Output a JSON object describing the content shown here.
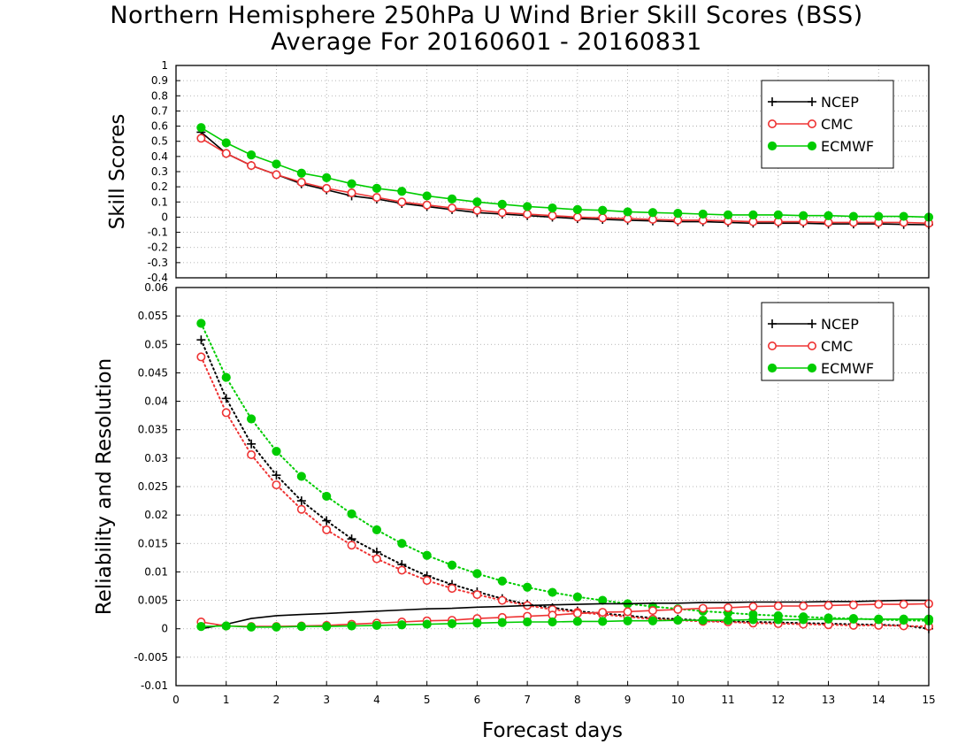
{
  "title_line1": "Northern Hemisphere 250hPa U Wind Brier Skill Scores (BSS)",
  "title_line2": "Average For 20160601 - 20160831",
  "colors": {
    "NCEP": "#000000",
    "CMC": "#ee3333",
    "ECMWF": "#00cc00"
  },
  "chart_data": [
    {
      "type": "line",
      "ylabel": "Skill Scores",
      "xlim": [
        0,
        15
      ],
      "ylim": [
        -0.4,
        1
      ],
      "yticks": [
        "-0.4",
        "-0.3",
        "-0.2",
        "-0.1",
        "0",
        "0.1",
        "0.2",
        "0.3",
        "0.4",
        "0.5",
        "0.6",
        "0.7",
        "0.8",
        "0.9",
        "1"
      ],
      "xticks": [
        "0",
        "1",
        "2",
        "3",
        "4",
        "5",
        "6",
        "7",
        "8",
        "9",
        "10",
        "11",
        "12",
        "13",
        "14",
        "15"
      ],
      "grid": true,
      "legend_position": "top-right",
      "x": [
        0.5,
        1,
        1.5,
        2,
        2.5,
        3,
        3.5,
        4,
        4.5,
        5,
        5.5,
        6,
        6.5,
        7,
        7.5,
        8,
        8.5,
        9,
        9.5,
        10,
        10.5,
        11,
        11.5,
        12,
        12.5,
        13,
        13.5,
        14,
        14.5,
        15
      ],
      "series": [
        {
          "name": "NCEP",
          "style": "solid",
          "marker": "plus",
          "values": [
            0.56,
            0.42,
            0.34,
            0.28,
            0.22,
            0.18,
            0.14,
            0.12,
            0.09,
            0.07,
            0.05,
            0.03,
            0.02,
            0.01,
            0.0,
            -0.01,
            -0.015,
            -0.02,
            -0.025,
            -0.03,
            -0.03,
            -0.035,
            -0.04,
            -0.04,
            -0.04,
            -0.045,
            -0.045,
            -0.045,
            -0.048,
            -0.05
          ]
        },
        {
          "name": "CMC",
          "style": "solid",
          "marker": "open-circle",
          "values": [
            0.52,
            0.42,
            0.34,
            0.28,
            0.23,
            0.19,
            0.16,
            0.13,
            0.1,
            0.08,
            0.06,
            0.045,
            0.03,
            0.02,
            0.01,
            0.0,
            -0.005,
            -0.01,
            -0.015,
            -0.02,
            -0.02,
            -0.025,
            -0.03,
            -0.03,
            -0.03,
            -0.035,
            -0.035,
            -0.035,
            -0.035,
            -0.04
          ]
        },
        {
          "name": "ECMWF",
          "style": "solid",
          "marker": "filled-circle",
          "values": [
            0.59,
            0.49,
            0.41,
            0.35,
            0.29,
            0.26,
            0.22,
            0.19,
            0.17,
            0.14,
            0.12,
            0.1,
            0.085,
            0.07,
            0.06,
            0.05,
            0.045,
            0.035,
            0.03,
            0.025,
            0.02,
            0.015,
            0.015,
            0.015,
            0.01,
            0.01,
            0.005,
            0.005,
            0.005,
            0.0
          ]
        }
      ]
    },
    {
      "type": "line",
      "ylabel": "Reliability and Resolution",
      "xlabel": "Forecast days",
      "xlim": [
        0,
        15
      ],
      "ylim": [
        -0.01,
        0.06
      ],
      "yticks": [
        "-0.01",
        "-0.005",
        "0",
        "0.005",
        "0.01",
        "0.015",
        "0.02",
        "0.025",
        "0.03",
        "0.035",
        "0.04",
        "0.045",
        "0.05",
        "0.055",
        "0.06"
      ],
      "xticks": [
        "0",
        "1",
        "2",
        "3",
        "4",
        "5",
        "6",
        "7",
        "8",
        "9",
        "10",
        "11",
        "12",
        "13",
        "14",
        "15"
      ],
      "grid": true,
      "legend_position": "top-right",
      "x": [
        0.5,
        1,
        1.5,
        2,
        2.5,
        3,
        3.5,
        4,
        4.5,
        5,
        5.5,
        6,
        6.5,
        7,
        7.5,
        8,
        8.5,
        9,
        9.5,
        10,
        10.5,
        11,
        11.5,
        12,
        12.5,
        13,
        13.5,
        14,
        14.5,
        15
      ],
      "series": [
        {
          "name": "NCEP",
          "style": "dotted",
          "marker": "plus",
          "values": [
            0.0508,
            0.0405,
            0.0325,
            0.027,
            0.0225,
            0.019,
            0.0158,
            0.0135,
            0.0113,
            0.0093,
            0.0078,
            0.0065,
            0.0053,
            0.0043,
            0.0037,
            0.0031,
            0.0027,
            0.0023,
            0.0019,
            0.0017,
            0.0015,
            0.0013,
            0.0012,
            0.0011,
            0.001,
            0.0009,
            0.0008,
            0.0007,
            0.0006,
            0.0
          ]
        },
        {
          "name": "CMC",
          "style": "dotted",
          "marker": "open-circle",
          "values": [
            0.0478,
            0.038,
            0.0306,
            0.0253,
            0.021,
            0.0174,
            0.0147,
            0.0123,
            0.0103,
            0.0085,
            0.0071,
            0.006,
            0.005,
            0.0041,
            0.0034,
            0.0029,
            0.0025,
            0.0021,
            0.0017,
            0.0015,
            0.0013,
            0.0012,
            0.001,
            0.0009,
            0.0008,
            0.0007,
            0.0006,
            0.0006,
            0.0005,
            0.0004
          ]
        },
        {
          "name": "ECMWF",
          "style": "dotted",
          "marker": "filled-circle",
          "values": [
            0.0537,
            0.0442,
            0.0369,
            0.0312,
            0.0268,
            0.0233,
            0.0202,
            0.0174,
            0.015,
            0.0129,
            0.0112,
            0.0097,
            0.0084,
            0.0073,
            0.0064,
            0.0056,
            0.005,
            0.0044,
            0.0039,
            0.0035,
            0.0031,
            0.0028,
            0.0025,
            0.0023,
            0.0021,
            0.0019,
            0.0018,
            0.0016,
            0.0015,
            0.0014
          ]
        },
        {
          "name": "NCEP",
          "style": "solid",
          "marker": "none",
          "values": [
            0.0,
            0.0008,
            0.0018,
            0.0023,
            0.0025,
            0.0027,
            0.0029,
            0.0031,
            0.0033,
            0.0035,
            0.0036,
            0.0038,
            0.0039,
            0.0041,
            0.0042,
            0.0043,
            0.0044,
            0.0044,
            0.0045,
            0.0045,
            0.0046,
            0.0046,
            0.0047,
            0.0047,
            0.0047,
            0.0048,
            0.0048,
            0.0049,
            0.005,
            0.005
          ]
        },
        {
          "name": "CMC",
          "style": "solid",
          "marker": "open-circle",
          "values": [
            0.0012,
            0.0005,
            0.0004,
            0.0004,
            0.0005,
            0.0006,
            0.0008,
            0.001,
            0.0012,
            0.0014,
            0.0015,
            0.0018,
            0.002,
            0.0022,
            0.0024,
            0.0027,
            0.0029,
            0.003,
            0.0032,
            0.0034,
            0.0036,
            0.0037,
            0.0039,
            0.004,
            0.004,
            0.0041,
            0.0042,
            0.0043,
            0.0043,
            0.0044
          ]
        },
        {
          "name": "ECMWF",
          "style": "solid",
          "marker": "filled-circle",
          "values": [
            0.0004,
            0.0005,
            0.0003,
            0.0003,
            0.0004,
            0.0004,
            0.0005,
            0.0006,
            0.0007,
            0.0008,
            0.0009,
            0.001,
            0.0011,
            0.0012,
            0.0012,
            0.0013,
            0.0013,
            0.0014,
            0.0014,
            0.0015,
            0.0015,
            0.0015,
            0.0016,
            0.0016,
            0.0016,
            0.0017,
            0.0017,
            0.0017,
            0.0017,
            0.0017
          ]
        }
      ]
    }
  ]
}
